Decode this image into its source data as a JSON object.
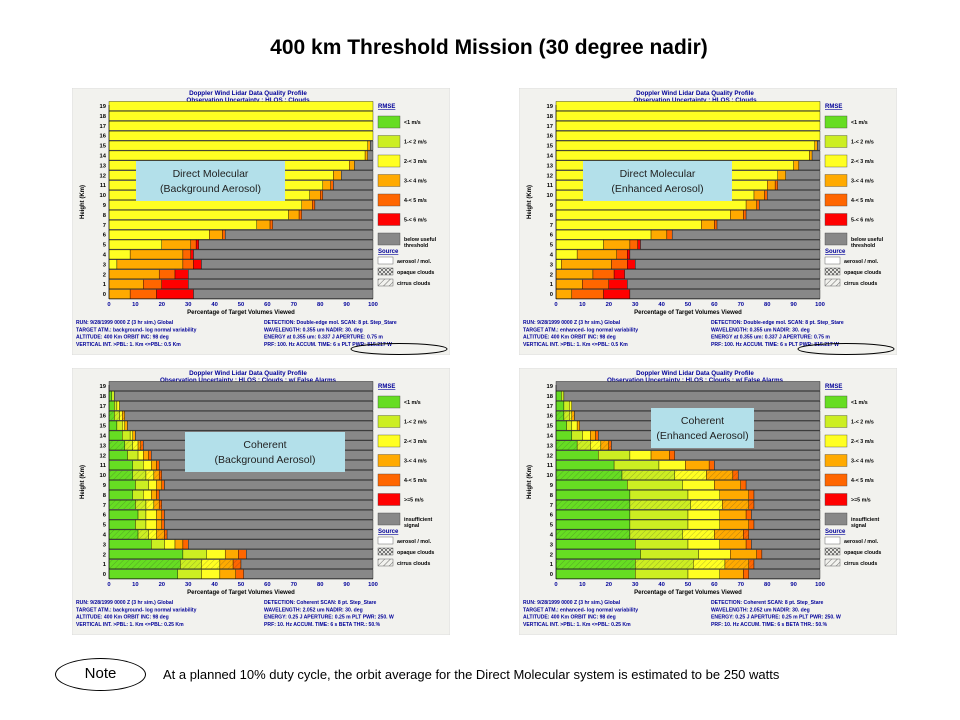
{
  "slide_title": "400 km Threshold Mission (30 degree nadir)",
  "note": {
    "label": "Note",
    "text": "At a planned 10% duty cycle, the orbit average for the Direct Molecular system is estimated to be 250 watts"
  },
  "colors": {
    "c1": "#66dd22",
    "c2": "#ccee22",
    "c3": "#ffff22",
    "c4": "#ffaa00",
    "c5": "#ff6600",
    "c6": "#ff0000",
    "grey": "#888888",
    "bg": "#f2f2ee",
    "bluebox": "#b3e0ea",
    "title_blue": "#000099"
  },
  "panels": [
    {
      "id": "dm-bg",
      "title1": "Doppler Wind Lidar Data Quality Profile",
      "title2": "Observation Uncertainty ; HLOS ; Clouds",
      "box": [
        "Direct Molecular",
        "(Background Aerosol)"
      ],
      "legend_title": "RMSE",
      "legend": [
        "<1 m/s",
        "1-< 2 m/s",
        "2-< 3 m/s",
        "3-< 4 m/s",
        "4-< 5 m/s",
        "5-< 6 m/s",
        "below useful",
        "threshold"
      ],
      "source_title": "Source",
      "source": [
        "aerosol / mol.",
        "opaque clouds",
        "cirrus clouds"
      ],
      "info_left": [
        "RUN:   9/28/1999 0000 Z (3 hr sim.) Global",
        "TARGET ATM.: background- log normal variability",
        "ALTITUDE: 400 Km    ORBIT INC: 98 deg",
        "VERTICAL INT. >PBL: 1. Km  <=PBL: 0.5 Km"
      ],
      "info_right": [
        "DETECTION: Double-edge mol.  SCAN: 8 pt. Step_Stare",
        "WAVELENGTH:  0.355 um    NADIR: 30. deg",
        "ENERGY at 0.355 um:  0.337 J   APERTURE: 0.75 m",
        "PRF: 100. Hz    ACCUM. TIME: 6 s  PLT PWR: 815.217 W"
      ],
      "circled": true
    },
    {
      "id": "dm-enh",
      "title1": "Doppler Wind Lidar Data Quality Profile",
      "title2": "Observation Uncertainty ; HLOS ; Clouds",
      "box": [
        "Direct Molecular",
        "(Enhanced Aerosol)"
      ],
      "legend_title": "RMSE",
      "legend": [
        "<1 m/s",
        "1-< 2 m/s",
        "2-< 3 m/s",
        "3-< 4 m/s",
        "4-< 5 m/s",
        "5-< 6 m/s",
        "below useful",
        "threshold"
      ],
      "source_title": "Source",
      "source": [
        "aerosol / mol.",
        "opaque clouds",
        "cirrus clouds"
      ],
      "info_left": [
        "RUN:   9/28/1999 0000 Z (3 hr sim.) Global",
        "TARGET ATM.: enhanced- log normal variability",
        "ALTITUDE: 400 Km    ORBIT INC: 98 deg",
        "VERTICAL INT. >PBL: 1. Km  <=PBL: 0.5 Km"
      ],
      "info_right": [
        "DETECTION: Double-edge mol.  SCAN: 8 pt. Step_Stare",
        "WAVELENGTH:  0.355 um    NADIR: 30. deg",
        "ENERGY at 0.355 um:  0.337 J   APERTURE: 0.75 m",
        "PRF: 100. Hz    ACCUM. TIME: 6 s  PLT PWR: 815.217 W"
      ],
      "circled": true
    },
    {
      "id": "coh-bg",
      "title1": "Doppler Wind Lidar Data Quality Profile",
      "title2": "Observation Uncertainty ; HLOS ; Clouds ; w/ False Alarms",
      "box": [
        "Coherent",
        "(Background Aerosol)"
      ],
      "legend_title": "RMSE",
      "legend": [
        "<1 m/s",
        "1-< 2 m/s",
        "2-< 3 m/s",
        "3-< 4 m/s",
        "4-< 5 m/s",
        ">=5 m/s",
        "insufficient",
        "signal"
      ],
      "source_title": "Source",
      "source": [
        "aerosol / mol.",
        "opaque clouds",
        "cirrus clouds"
      ],
      "info_left": [
        "RUN:   9/28/1999 0000 Z (3 hr sim.) Global",
        "TARGET ATM.: background- log normal variability",
        "ALTITUDE: 400 Km    ORBIT INC: 98 deg",
        "VERTICAL INT. >PBL: 1. Km  <=PBL: 0.25 Km"
      ],
      "info_right": [
        "DETECTION: Coherent  SCAN: 8 pt. Step_Stare",
        "WAVELENGTH:  2.052 um    NADIR: 30. deg",
        "ENERGY: 0.25 J   APERTURE: 0.25 m    PLT PWR: 250. W",
        "PRF: 10. Hz    ACCUM. TIME: 6 s    BETA THR.: 50.%"
      ],
      "circled": false
    },
    {
      "id": "coh-enh",
      "title1": "Doppler Wind Lidar Data Quality Profile",
      "title2": "Observation Uncertainty ; HLOS ; Clouds ; w/ False Alarms",
      "box": [
        "Coherent",
        "(Enhanced Aerosol)"
      ],
      "legend_title": "RMSE",
      "legend": [
        "<1 m/s",
        "1-< 2 m/s",
        "2-< 3 m/s",
        "3-< 4 m/s",
        "4-< 5 m/s",
        ">=5 m/s",
        "insufficient",
        "signal"
      ],
      "source_title": "Source",
      "source": [
        "aerosol / mol.",
        "opaque clouds",
        "cirrus clouds"
      ],
      "info_left": [
        "RUN:   9/28/1999 0000 Z (3 hr sim.) Global",
        "TARGET ATM.: enhanced- log normal variability",
        "ALTITUDE: 400 Km    ORBIT INC: 98 deg",
        "VERTICAL INT. >PBL: 1. Km  <=PBL: 0.25 Km"
      ],
      "info_right": [
        "DETECTION: Coherent  SCAN: 8 pt. Step_Stare",
        "WAVELENGTH:  2.052 um    NADIR: 30. deg",
        "ENERGY: 0.25 J   APERTURE: 0.25 m    PLT PWR: 250. W",
        "PRF: 10. Hz    ACCUM. TIME: 6 s    BETA THR.: 50.%"
      ],
      "circled": false
    }
  ],
  "chart_data": [
    {
      "type": "bar",
      "orientation": "horizontal-stacked",
      "panel": "dm-bg",
      "xlabel": "Percentage of Target Volumes Viewed",
      "ylabel": "Height (Km)",
      "xlim": [
        0,
        100
      ],
      "ylim": [
        0,
        19
      ],
      "x_ticks": [
        0,
        10,
        20,
        30,
        40,
        50,
        60,
        70,
        80,
        90,
        100
      ],
      "y_ticks": [
        0,
        1,
        2,
        3,
        4,
        5,
        6,
        7,
        8,
        9,
        10,
        11,
        12,
        13,
        14,
        15,
        16,
        17,
        18,
        19
      ],
      "categories_km": [
        0,
        1,
        2,
        3,
        4,
        5,
        6,
        7,
        8,
        9,
        10,
        11,
        12,
        13,
        14,
        15,
        16,
        17,
        18,
        19
      ],
      "series": [
        {
          "name": "<1 m/s",
          "values": [
            0,
            0,
            0,
            0,
            0,
            0,
            0,
            0,
            0,
            0,
            0,
            0,
            0,
            0,
            0,
            0,
            0,
            0,
            0,
            0
          ]
        },
        {
          "name": "1-< 2 m/s",
          "values": [
            0,
            0,
            0,
            0,
            0,
            0,
            0,
            0,
            0,
            0,
            0,
            0,
            0,
            0,
            0,
            0,
            0,
            0,
            0,
            0
          ]
        },
        {
          "name": "2-< 3 m/s",
          "values": [
            0,
            0,
            0,
            3,
            8,
            20,
            38,
            56,
            68,
            73,
            76,
            81,
            85,
            91,
            97,
            98,
            100,
            100,
            100,
            100
          ]
        },
        {
          "name": "3-< 4 m/s",
          "values": [
            8,
            13,
            19,
            25,
            20,
            11,
            5,
            5,
            4,
            4,
            4,
            3,
            3,
            2,
            1,
            1,
            0,
            0,
            0,
            0
          ]
        },
        {
          "name": "4-< 5 m/s",
          "values": [
            10,
            7,
            6,
            4,
            3,
            2,
            1,
            1,
            1,
            1,
            1,
            1,
            0,
            0,
            0,
            0,
            0,
            0,
            0,
            0
          ]
        },
        {
          "name": "5-< 6 m/s",
          "values": [
            14,
            10,
            5,
            3,
            1,
            1,
            0,
            0,
            0,
            0,
            0,
            0,
            0,
            0,
            0,
            0,
            0,
            0,
            0,
            0
          ]
        },
        {
          "name": "below useful threshold",
          "values": [
            68,
            70,
            70,
            65,
            68,
            66,
            56,
            38,
            27,
            22,
            19,
            15,
            12,
            7,
            2,
            1,
            0,
            0,
            0,
            0
          ]
        }
      ]
    },
    {
      "type": "bar",
      "orientation": "horizontal-stacked",
      "panel": "dm-enh",
      "xlabel": "Percentage of Target Volumes Viewed",
      "ylabel": "Height (Km)",
      "xlim": [
        0,
        100
      ],
      "ylim": [
        0,
        19
      ],
      "x_ticks": [
        0,
        10,
        20,
        30,
        40,
        50,
        60,
        70,
        80,
        90,
        100
      ],
      "y_ticks": [
        0,
        1,
        2,
        3,
        4,
        5,
        6,
        7,
        8,
        9,
        10,
        11,
        12,
        13,
        14,
        15,
        16,
        17,
        18,
        19
      ],
      "categories_km": [
        0,
        1,
        2,
        3,
        4,
        5,
        6,
        7,
        8,
        9,
        10,
        11,
        12,
        13,
        14,
        15,
        16,
        17,
        18,
        19
      ],
      "series": [
        {
          "name": "<1 m/s",
          "values": [
            0,
            0,
            0,
            0,
            0,
            0,
            0,
            0,
            0,
            0,
            0,
            0,
            0,
            0,
            0,
            0,
            0,
            0,
            0,
            0
          ]
        },
        {
          "name": "1-< 2 m/s",
          "values": [
            0,
            0,
            0,
            0,
            0,
            0,
            0,
            0,
            0,
            0,
            0,
            0,
            0,
            0,
            0,
            0,
            0,
            0,
            0,
            0
          ]
        },
        {
          "name": "2-< 3 m/s",
          "values": [
            0,
            0,
            0,
            2,
            8,
            18,
            36,
            55,
            66,
            72,
            75,
            80,
            84,
            90,
            96,
            98,
            100,
            100,
            100,
            100
          ]
        },
        {
          "name": "3-< 4 m/s",
          "values": [
            6,
            10,
            14,
            19,
            15,
            10,
            6,
            5,
            5,
            4,
            4,
            3,
            3,
            2,
            1,
            1,
            0,
            0,
            0,
            0
          ]
        },
        {
          "name": "4-< 5 m/s",
          "values": [
            12,
            10,
            8,
            6,
            4,
            3,
            2,
            1,
            1,
            1,
            1,
            1,
            0,
            0,
            0,
            0,
            0,
            0,
            0,
            0
          ]
        },
        {
          "name": "5-< 6 m/s",
          "values": [
            10,
            7,
            4,
            3,
            1,
            1,
            0,
            0,
            0,
            0,
            0,
            0,
            0,
            0,
            0,
            0,
            0,
            0,
            0,
            0
          ]
        },
        {
          "name": "below useful threshold",
          "values": [
            72,
            73,
            74,
            70,
            72,
            68,
            56,
            39,
            28,
            23,
            20,
            16,
            13,
            8,
            3,
            1,
            0,
            0,
            0,
            0
          ]
        }
      ]
    },
    {
      "type": "bar",
      "orientation": "horizontal-stacked",
      "panel": "coh-bg",
      "xlabel": "Percentage of Target Volumes Viewed",
      "ylabel": "Height (Km)",
      "xlim": [
        0,
        100
      ],
      "ylim": [
        0,
        19
      ],
      "x_ticks": [
        0,
        10,
        20,
        30,
        40,
        50,
        60,
        70,
        80,
        90,
        100
      ],
      "y_ticks": [
        0,
        1,
        2,
        3,
        4,
        5,
        6,
        7,
        8,
        9,
        10,
        11,
        12,
        13,
        14,
        15,
        16,
        17,
        18,
        19
      ],
      "categories_km": [
        0,
        1,
        2,
        3,
        4,
        5,
        6,
        7,
        8,
        9,
        10,
        11,
        12,
        13,
        14,
        15,
        16,
        17,
        18,
        19
      ],
      "series": [
        {
          "name": "<1 m/s",
          "values": [
            26,
            27,
            28,
            16,
            11,
            10,
            11,
            10,
            9,
            10,
            9,
            9,
            7,
            6,
            5,
            3,
            2,
            2,
            1,
            0
          ]
        },
        {
          "name": "1-< 2 m/s",
          "values": [
            9,
            8,
            9,
            5,
            4,
            4,
            3,
            4,
            4,
            5,
            5,
            4,
            4,
            3,
            3,
            2,
            2,
            1,
            1,
            0
          ]
        },
        {
          "name": "2-< 3 m/s",
          "values": [
            7,
            7,
            7,
            4,
            3,
            4,
            4,
            3,
            3,
            3,
            3,
            3,
            2,
            2,
            1,
            1,
            1,
            1,
            0,
            0
          ]
        },
        {
          "name": "3-< 4 m/s",
          "values": [
            6,
            5,
            5,
            3,
            3,
            2,
            2,
            2,
            2,
            2,
            2,
            2,
            2,
            1,
            1,
            1,
            1,
            0,
            0,
            0
          ]
        },
        {
          "name": "4-< 5 m/s",
          "values": [
            3,
            3,
            3,
            2,
            1,
            1,
            1,
            1,
            1,
            1,
            1,
            1,
            1,
            1,
            0,
            0,
            0,
            0,
            0,
            0
          ]
        },
        {
          "name": ">=5 m/s",
          "values": [
            0,
            0,
            0,
            0,
            0,
            0,
            0,
            0,
            0,
            0,
            0,
            0,
            0,
            0,
            0,
            0,
            0,
            0,
            0,
            0
          ]
        },
        {
          "name": "insufficient signal",
          "values": [
            49,
            50,
            48,
            70,
            78,
            79,
            79,
            80,
            81,
            79,
            80,
            81,
            84,
            87,
            90,
            93,
            94,
            96,
            98,
            100
          ]
        }
      ]
    },
    {
      "type": "bar",
      "orientation": "horizontal-stacked",
      "panel": "coh-enh",
      "xlabel": "Percentage of Target Volumes Viewed",
      "ylabel": "Height (Km)",
      "xlim": [
        0,
        100
      ],
      "ylim": [
        0,
        19
      ],
      "x_ticks": [
        0,
        10,
        20,
        30,
        40,
        50,
        60,
        70,
        80,
        90,
        100
      ],
      "y_ticks": [
        0,
        1,
        2,
        3,
        4,
        5,
        6,
        7,
        8,
        9,
        10,
        11,
        12,
        13,
        14,
        15,
        16,
        17,
        18,
        19
      ],
      "categories_km": [
        0,
        1,
        2,
        3,
        4,
        5,
        6,
        7,
        8,
        9,
        10,
        11,
        12,
        13,
        14,
        15,
        16,
        17,
        18,
        19
      ],
      "series": [
        {
          "name": "<1 m/s",
          "values": [
            30,
            30,
            32,
            30,
            28,
            28,
            28,
            28,
            28,
            27,
            25,
            22,
            16,
            8,
            6,
            4,
            3,
            3,
            2,
            0
          ]
        },
        {
          "name": "1-< 2 m/s",
          "values": [
            20,
            22,
            22,
            20,
            20,
            22,
            22,
            23,
            22,
            21,
            20,
            17,
            12,
            5,
            4,
            2,
            2,
            2,
            1,
            0
          ]
        },
        {
          "name": "2-< 3 m/s",
          "values": [
            12,
            12,
            12,
            12,
            12,
            12,
            12,
            12,
            12,
            12,
            12,
            10,
            8,
            4,
            3,
            2,
            1,
            1,
            0,
            0
          ]
        },
        {
          "name": "3-< 4 m/s",
          "values": [
            9,
            9,
            10,
            10,
            11,
            11,
            10,
            10,
            11,
            10,
            10,
            9,
            7,
            3,
            2,
            1,
            1,
            0,
            0,
            0
          ]
        },
        {
          "name": "4-< 5 m/s",
          "values": [
            2,
            2,
            2,
            2,
            2,
            2,
            2,
            2,
            2,
            2,
            2,
            2,
            2,
            1,
            1,
            0,
            0,
            0,
            0,
            0
          ]
        },
        {
          "name": ">=5 m/s",
          "values": [
            0,
            0,
            0,
            0,
            0,
            0,
            0,
            0,
            0,
            0,
            0,
            0,
            0,
            0,
            0,
            0,
            0,
            0,
            0,
            0
          ]
        },
        {
          "name": "insufficient signal",
          "values": [
            27,
            25,
            22,
            26,
            27,
            25,
            26,
            25,
            25,
            28,
            31,
            40,
            55,
            79,
            84,
            91,
            93,
            94,
            97,
            100
          ]
        }
      ]
    }
  ]
}
